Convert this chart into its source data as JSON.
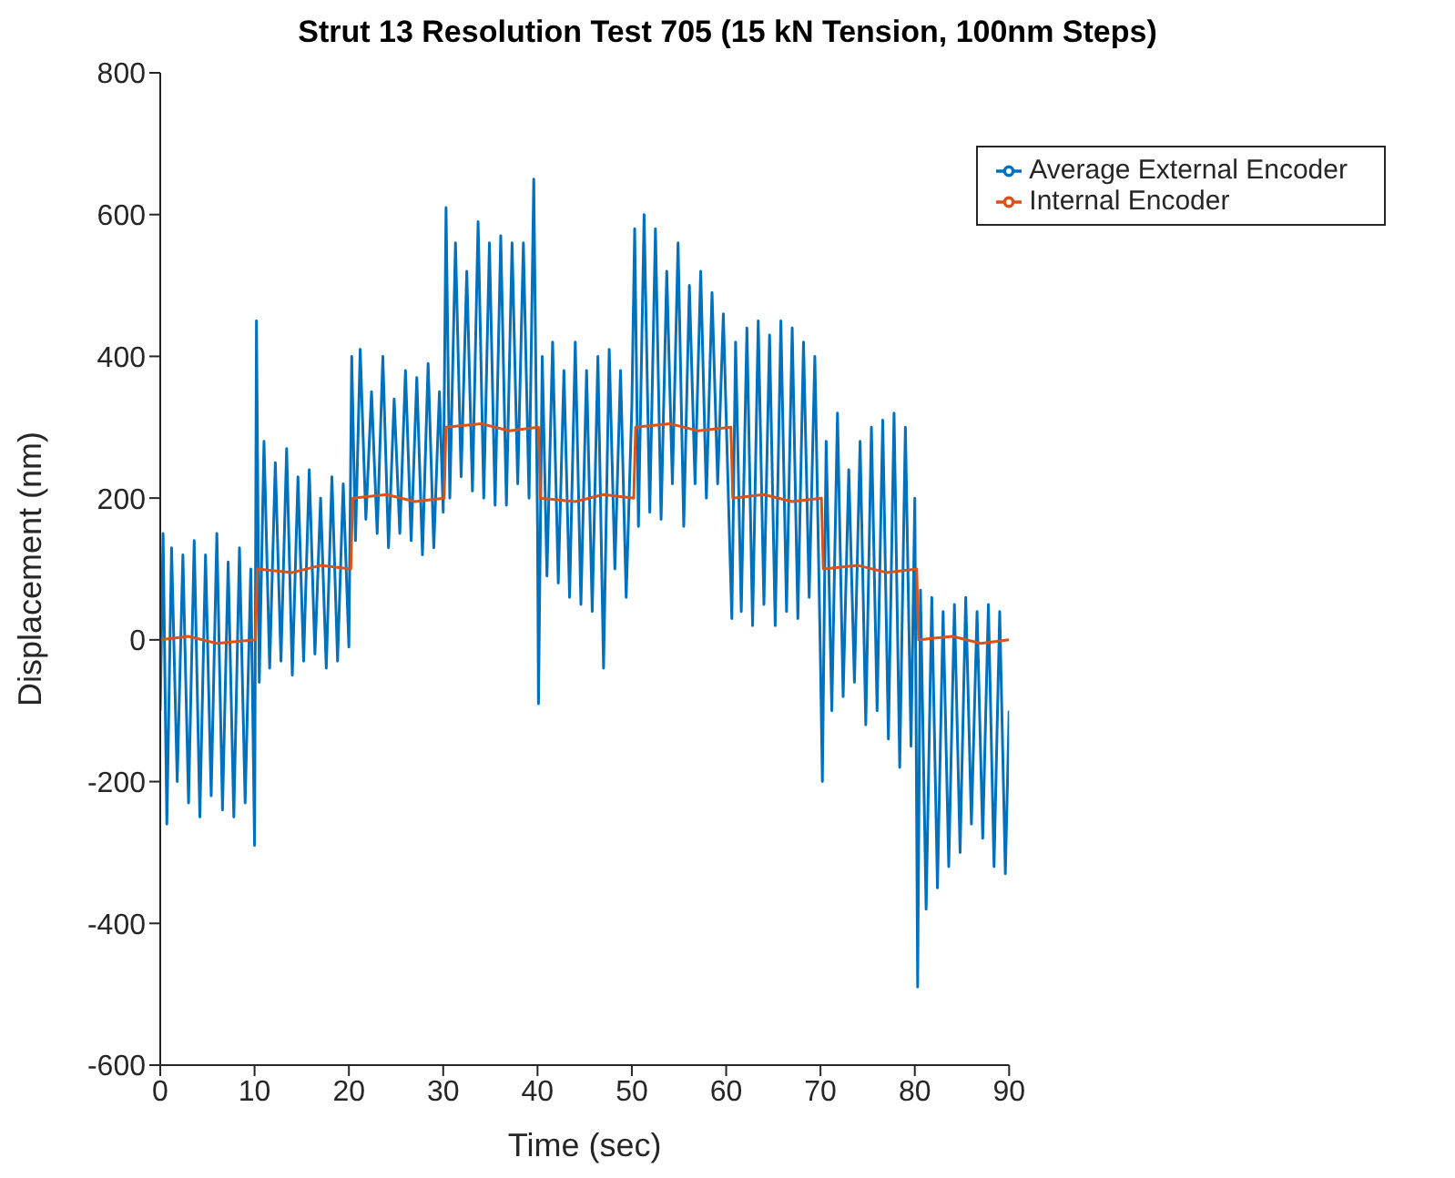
{
  "chart_data": {
    "type": "line",
    "title": "Strut 13 Resolution Test 705 (15 kN Tension, 100nm Steps)",
    "xlabel": "Time (sec)",
    "ylabel": "Displacement (nm)",
    "xlim": [
      0,
      90
    ],
    "xticks": [
      0,
      10,
      20,
      30,
      40,
      50,
      60,
      70,
      80,
      90
    ],
    "ylim": [
      -600,
      800
    ],
    "yticks": [
      -600,
      -400,
      -200,
      0,
      200,
      400,
      600,
      800
    ],
    "grid": false,
    "legend": "top right",
    "marker": "none",
    "line_style": "solid",
    "series": [
      {
        "name": "Average External Encoder",
        "color": "#0072bd",
        "x": [
          0,
          0.3,
          0.7,
          1.2,
          1.8,
          2.4,
          3,
          3.6,
          4.2,
          4.8,
          5.4,
          6,
          6.6,
          7.2,
          7.8,
          8.4,
          9,
          9.6,
          10,
          10.2,
          10.5,
          11,
          11.6,
          12.2,
          12.8,
          13.4,
          14,
          14.6,
          15.2,
          15.8,
          16.4,
          17,
          17.6,
          18.2,
          18.8,
          19.4,
          20,
          20.3,
          20.7,
          21.2,
          21.8,
          22.4,
          23,
          23.6,
          24.2,
          24.8,
          25.4,
          26,
          26.6,
          27.2,
          27.8,
          28.4,
          29,
          29.6,
          30,
          30.3,
          30.7,
          31.3,
          31.9,
          32.5,
          33.1,
          33.7,
          34.3,
          34.9,
          35.5,
          36.1,
          36.7,
          37.3,
          37.9,
          38.5,
          39.1,
          39.6,
          40,
          40.1,
          40.5,
          41,
          41.6,
          42.2,
          42.8,
          43.4,
          44,
          44.6,
          45.2,
          45.8,
          46.4,
          47,
          47.6,
          48.2,
          48.8,
          49.4,
          50,
          50.3,
          50.7,
          51.3,
          51.9,
          52.5,
          53.1,
          53.7,
          54.3,
          54.9,
          55.5,
          56.1,
          56.7,
          57.3,
          57.9,
          58.5,
          59.1,
          59.7,
          60.3,
          60.6,
          61,
          61.6,
          62.2,
          62.8,
          63.4,
          64,
          64.6,
          65.2,
          65.8,
          66.4,
          67,
          67.6,
          68.2,
          68.8,
          69.4,
          70,
          70.2,
          70.6,
          71.2,
          71.8,
          72.4,
          73,
          73.6,
          74.2,
          74.8,
          75.4,
          76,
          76.6,
          77.2,
          77.8,
          78.4,
          79,
          79.6,
          80,
          80.3,
          80.6,
          81.2,
          81.8,
          82.4,
          83,
          83.6,
          84.2,
          84.8,
          85.4,
          86,
          86.6,
          87.2,
          87.8,
          88.4,
          89,
          89.6,
          90
        ],
        "values": [
          -100,
          150,
          -260,
          130,
          -200,
          120,
          -230,
          140,
          -250,
          120,
          -220,
          150,
          -240,
          110,
          -250,
          130,
          -230,
          100,
          -290,
          450,
          -60,
          280,
          -40,
          250,
          -30,
          270,
          -50,
          230,
          -30,
          240,
          -20,
          200,
          -40,
          230,
          -30,
          220,
          -10,
          400,
          140,
          410,
          170,
          350,
          150,
          400,
          130,
          340,
          150,
          380,
          140,
          370,
          120,
          390,
          130,
          350,
          180,
          610,
          200,
          560,
          230,
          520,
          210,
          590,
          200,
          560,
          190,
          570,
          190,
          560,
          220,
          560,
          200,
          650,
          160,
          -90,
          400,
          90,
          420,
          80,
          380,
          60,
          420,
          50,
          380,
          40,
          400,
          -40,
          410,
          100,
          380,
          60,
          330,
          580,
          160,
          600,
          180,
          580,
          170,
          520,
          220,
          560,
          160,
          500,
          220,
          520,
          200,
          490,
          220,
          460,
          170,
          30,
          420,
          40,
          440,
          20,
          450,
          50,
          430,
          20,
          450,
          40,
          440,
          30,
          420,
          60,
          400,
          -30,
          -200,
          280,
          -100,
          320,
          -80,
          240,
          -60,
          280,
          -120,
          300,
          -100,
          310,
          -140,
          320,
          -180,
          300,
          -150,
          200,
          -490,
          70,
          -380,
          60,
          -350,
          40,
          -320,
          50,
          -300,
          60,
          -260,
          40,
          -280,
          50,
          -320,
          40,
          -330,
          -100
        ]
      },
      {
        "name": "Internal Encoder",
        "color": "#d95319",
        "x": [
          0,
          3,
          6,
          10.1,
          10.3,
          14,
          17,
          20.2,
          20.4,
          24,
          27,
          30.1,
          30.3,
          34,
          37,
          40.1,
          40.3,
          44,
          47,
          50.2,
          50.4,
          54,
          57,
          60.5,
          60.7,
          64,
          67,
          70.1,
          70.3,
          74,
          77,
          80.2,
          80.4,
          84,
          87,
          90
        ],
        "values": [
          0,
          5,
          -5,
          0,
          100,
          95,
          105,
          100,
          200,
          205,
          195,
          200,
          300,
          305,
          295,
          300,
          200,
          195,
          205,
          200,
          300,
          305,
          295,
          300,
          200,
          205,
          195,
          200,
          100,
          105,
          95,
          100,
          0,
          5,
          -5,
          0
        ]
      }
    ]
  }
}
